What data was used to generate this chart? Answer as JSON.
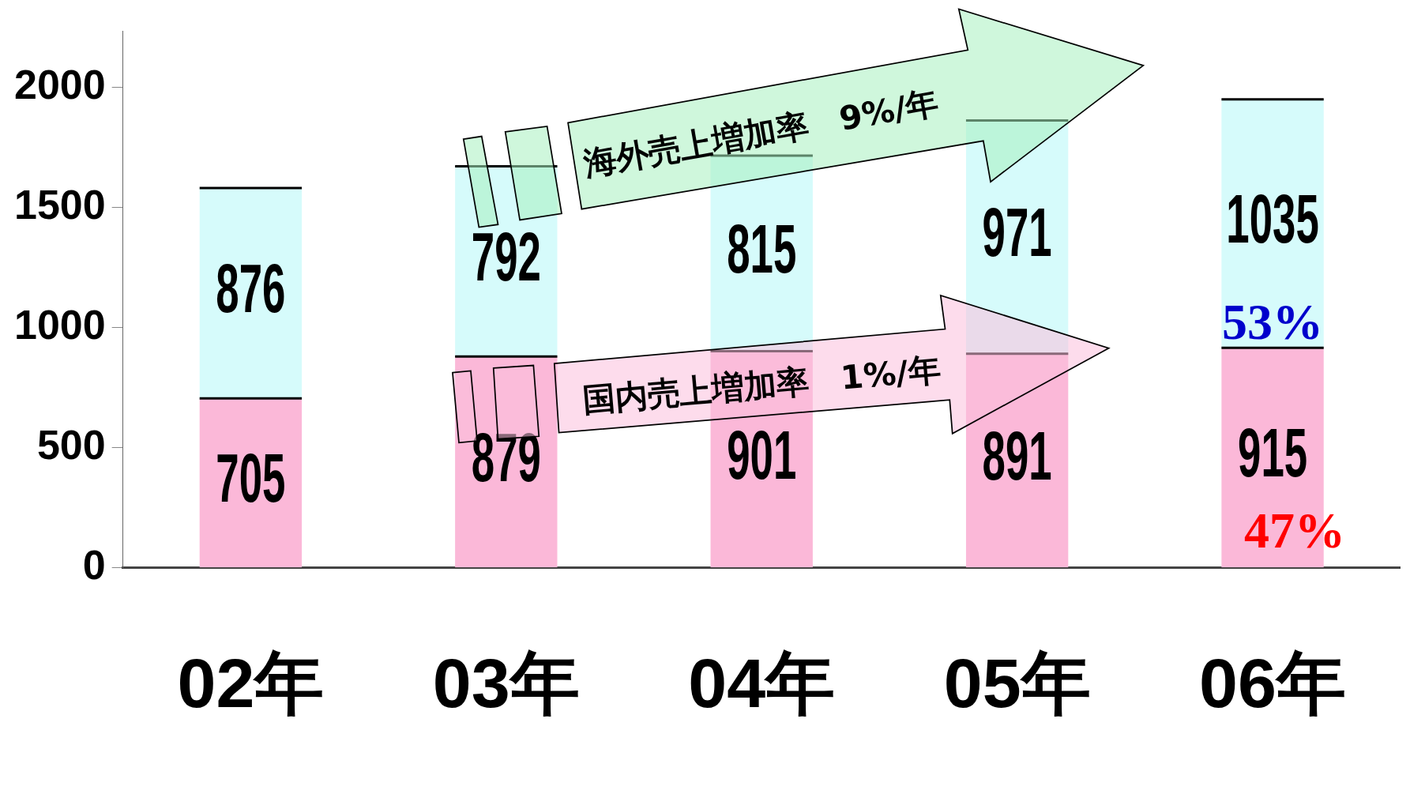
{
  "chart_data": {
    "type": "bar",
    "stacked": true,
    "categories": [
      "02年",
      "03年",
      "04年",
      "05年",
      "06年"
    ],
    "series": [
      {
        "color": "#fbb8d8",
        "values": [
          705,
          879,
          901,
          891,
          915
        ]
      },
      {
        "color": "#d6fbfb",
        "values": [
          876,
          792,
          815,
          971,
          1035
        ]
      }
    ],
    "ylim": [
      0,
      2235
    ],
    "yticks": [
      0,
      500,
      1000,
      1500,
      2000
    ],
    "grid": false,
    "legend": false,
    "data_labels": true,
    "annotations": [
      {
        "text": "海外売上増加率　9%/年",
        "x": "04年",
        "y": 1716
      },
      {
        "text": "国内売上増加率　1%/年",
        "x": "04年",
        "y": 901
      },
      "53%",
      "47%"
    ]
  }
}
